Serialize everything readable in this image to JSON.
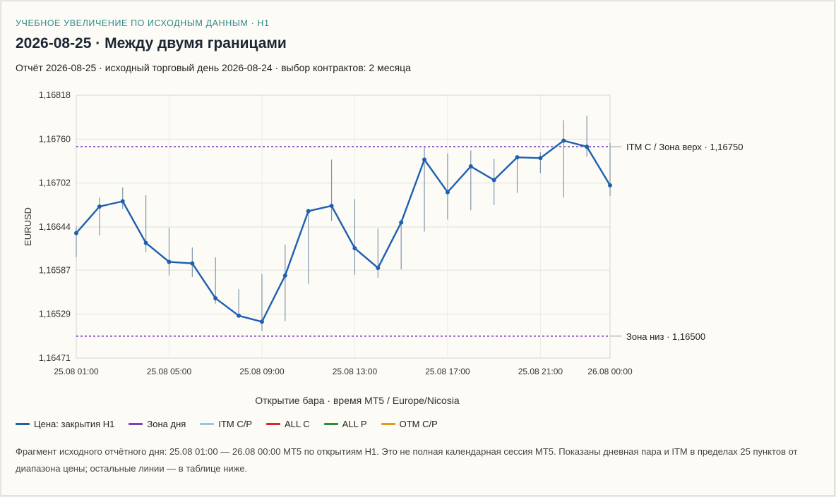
{
  "header": {
    "eyebrow": "УЧЕБНОЕ УВЕЛИЧЕНИЕ ПО ИСХОДНЫМ ДАННЫМ · H1",
    "title": "2026-08-25 · Между двумя границами",
    "subtitle": "Отчёт 2026-08-25 · исходный торговый день 2026-08-24 · выбор контрактов: 2 месяца"
  },
  "chart_data": {
    "type": "line",
    "xlabel": "Открытие бара · время MT5 / Europe/Nicosia",
    "ylabel": "EURUSD",
    "ylim": [
      1.16471,
      1.16818
    ],
    "yticks": [
      "1,16818",
      "1,16760",
      "1,16702",
      "1,16644",
      "1,16587",
      "1,16529",
      "1,16471"
    ],
    "yticks_values": [
      1.16818,
      1.1676,
      1.16702,
      1.16644,
      1.16587,
      1.16529,
      1.16471
    ],
    "xticks": [
      "25.08 01:00",
      "25.08 05:00",
      "25.08 09:00",
      "25.08 13:00",
      "25.08 17:00",
      "25.08 21:00",
      "26.08 00:00"
    ],
    "xticks_index": [
      0,
      4,
      8,
      12,
      16,
      20,
      23
    ],
    "grid": true,
    "series": [
      {
        "name": "Цена: закрытия H1",
        "x": [
          "25.08 01:00",
          "25.08 02:00",
          "25.08 03:00",
          "25.08 04:00",
          "25.08 05:00",
          "25.08 06:00",
          "25.08 07:00",
          "25.08 08:00",
          "25.08 09:00",
          "25.08 10:00",
          "25.08 11:00",
          "25.08 12:00",
          "25.08 13:00",
          "25.08 14:00",
          "25.08 15:00",
          "25.08 16:00",
          "25.08 17:00",
          "25.08 18:00",
          "25.08 19:00",
          "25.08 20:00",
          "25.08 21:00",
          "25.08 22:00",
          "25.08 23:00",
          "26.08 00:00"
        ],
        "close": [
          1.16636,
          1.16671,
          1.16678,
          1.16623,
          1.16598,
          1.16596,
          1.1655,
          1.16527,
          1.16519,
          1.1658,
          1.16665,
          1.16672,
          1.16616,
          1.1659,
          1.1665,
          1.16733,
          1.1669,
          1.16724,
          1.16706,
          1.16736,
          1.16735,
          1.16758,
          1.1675,
          1.16699
        ],
        "high": [
          1.16645,
          1.16683,
          1.16696,
          1.16686,
          1.16643,
          1.16617,
          1.16604,
          1.16562,
          1.16582,
          1.16621,
          1.16668,
          1.16733,
          1.16681,
          1.16642,
          1.16654,
          1.1675,
          1.16741,
          1.16745,
          1.16734,
          1.16738,
          1.16743,
          1.16785,
          1.16791,
          1.16755
        ],
        "low": [
          1.16604,
          1.16633,
          1.16668,
          1.16611,
          1.1658,
          1.16578,
          1.16543,
          1.16525,
          1.16507,
          1.1652,
          1.16569,
          1.16652,
          1.16581,
          1.16577,
          1.16588,
          1.16638,
          1.16654,
          1.16666,
          1.16673,
          1.16689,
          1.16715,
          1.16683,
          1.16737,
          1.16685
        ]
      }
    ],
    "hlines": [
      {
        "label": "ITM C / Зона верх · 1,16750",
        "value": 1.1675,
        "color": "#7b3fbf"
      },
      {
        "label": "Зона низ · 1,16500",
        "value": 1.165,
        "color": "#7b3fbf"
      }
    ],
    "legend": [
      {
        "label": "Цена: закрытия H1",
        "color": "#1f5fb0"
      },
      {
        "label": "Зона дня",
        "color": "#7b3fbf"
      },
      {
        "label": "ITM C/P",
        "color": "#8ec8ee"
      },
      {
        "label": "ALL C",
        "color": "#cc2b2b"
      },
      {
        "label": "ALL P",
        "color": "#2e8b3a"
      },
      {
        "label": "OTM C/P",
        "color": "#e89a12"
      }
    ],
    "legend_position": "bottom-left"
  },
  "note": "Фрагмент исходного отчётного дня: 25.08 01:00 — 26.08 00:00 MT5 по открытиям H1. Это не полная календарная сессия MT5. Показаны дневная пара и ITM в пределах 25 пунктов от диапазона цены; остальные линии — в таблице ниже."
}
